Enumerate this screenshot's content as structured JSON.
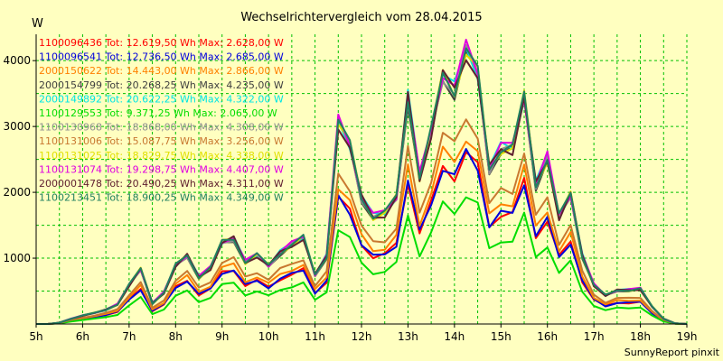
{
  "chart_data": {
    "type": "line",
    "title": "Wechselrichtervergleich vom 28.04.2015",
    "ylabel": "W",
    "footer": "SunnyReport pinxit",
    "xlim": [
      5,
      19
    ],
    "ylim": [
      0,
      4400
    ],
    "grid": true,
    "legend_position": "top-left",
    "x_tick_labels": [
      "5h",
      "6h",
      "7h",
      "8h",
      "9h",
      "10h",
      "11h",
      "12h",
      "13h",
      "14h",
      "15h",
      "16h",
      "17h",
      "18h",
      "19h"
    ],
    "y_ticks": [
      1000,
      2000,
      3000,
      4000
    ],
    "x": [
      5,
      5.25,
      5.5,
      5.75,
      6,
      6.25,
      6.5,
      6.75,
      7,
      7.25,
      7.5,
      7.75,
      8,
      8.25,
      8.5,
      8.75,
      9,
      9.25,
      9.5,
      9.75,
      10,
      10.25,
      10.5,
      10.75,
      11,
      11.25,
      11.5,
      11.75,
      12,
      12.25,
      12.5,
      12.75,
      13,
      13.25,
      13.5,
      13.75,
      14,
      14.25,
      14.5,
      14.75,
      15,
      15.25,
      15.5,
      15.75,
      16,
      16.25,
      16.5,
      16.75,
      17,
      17.25,
      17.5,
      17.75,
      18,
      18.25,
      18.5,
      18.75,
      19
    ],
    "series": [
      {
        "name": "1100096436 Tot: 12.619,50 Wh Max: 2.628,00 W",
        "color": "#ff0000",
        "scale": 0.62
      },
      {
        "name": "1100096541 Tot: 12.736,50 Wh Max: 2.685,00 W",
        "color": "#0000dd",
        "scale": 0.62
      },
      {
        "name": "2000150622 Tot: 14.443,00 Wh Max: 2.866,00 W",
        "color": "#ff8000",
        "scale": 0.68
      },
      {
        "name": "2000154799 Tot: 20.268,25 Wh Max: 4.235,00 W",
        "color": "#404040",
        "scale": 0.97
      },
      {
        "name": "2000149892 Tot: 20.622,25 Wh Max: 4.322,00 W",
        "color": "#00e5e5",
        "scale": 0.995
      },
      {
        "name": "1100129553 Tot: 9.371,25 Wh Max: 2.065,00 W",
        "color": "#00dd00",
        "scale": 0.47
      },
      {
        "name": "1100130968 Tot: 18.868,00 Wh Max: 4.308,00 W",
        "color": "#909090",
        "scale": 0.98
      },
      {
        "name": "1100131006 Tot: 15.087,75 Wh Max: 3.256,00 W",
        "color": "#c87830",
        "scale": 0.75
      },
      {
        "name": "1100131025 Tot: 18.829,75 Wh Max: 4.338,00 W",
        "color": "#e0e000",
        "scale": 0.985
      },
      {
        "name": "1100131074 Tot: 19.298,75 Wh Max: 4.407,00 W",
        "color": "#e000e0",
        "scale": 1.0
      },
      {
        "name": "2000001478 Tot: 20.490,25 Wh Max: 4.311,00 W",
        "color": "#602030",
        "scale": 0.98
      },
      {
        "name": "1100213451 Tot: 18.900,25 Wh Max: 4.349,00 W",
        "color": "#208060",
        "scale": 0.99
      }
    ],
    "base_profile": [
      0,
      0,
      20,
      80,
      130,
      170,
      220,
      300,
      600,
      850,
      320,
      480,
      900,
      1060,
      720,
      860,
      1260,
      1320,
      950,
      1060,
      900,
      1100,
      1220,
      1330,
      760,
      1040,
      3100,
      2750,
      1950,
      1650,
      1700,
      1950,
      3500,
      2250,
      2950,
      3850,
      3600,
      4200,
      3850,
      2400,
      2700,
      2700,
      3500,
      2150,
      2550,
      1650,
      2000,
      1050,
      600,
      440,
      520,
      520,
      540,
      270,
      80,
      10,
      0
    ]
  }
}
